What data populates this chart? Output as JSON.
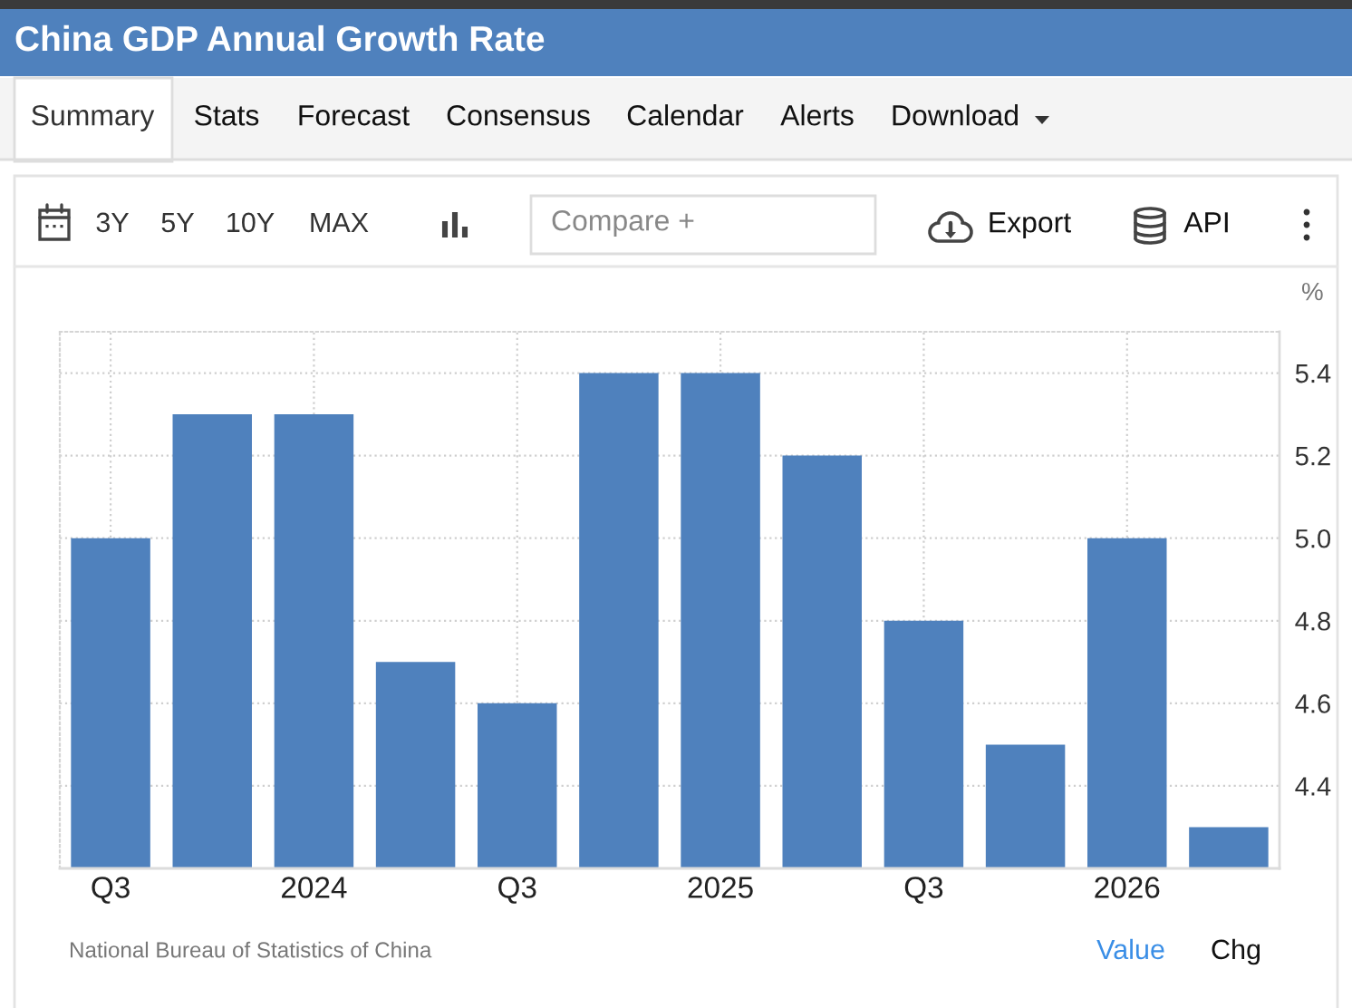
{
  "chart_data": {
    "type": "bar",
    "title": "China GDP Annual Growth Rate",
    "ylabel": "%",
    "categories": [
      "Q3",
      null,
      "2024",
      null,
      "Q3",
      null,
      "2025",
      null,
      "Q3",
      null,
      "2026",
      null
    ],
    "values": [
      5.0,
      5.3,
      5.3,
      4.7,
      4.6,
      5.4,
      5.4,
      5.2,
      4.8,
      4.5,
      5.0,
      4.3
    ],
    "color": "#4f81bd",
    "ylim": [
      4.2,
      5.5
    ],
    "yticks": [
      4.4,
      4.6,
      4.8,
      {
        "value": 5,
        "label": "5.0"
      },
      5.2,
      5.4
    ],
    "grid": true,
    "annotations": [
      "National Bureau of Statistics of China",
      "Summary",
      "Stats",
      "Forecast",
      "Consensus",
      "Calendar",
      "Alerts",
      "Download",
      "3Y",
      "5Y",
      "10Y",
      "MAX",
      "Compare +",
      "Export",
      "API",
      "Value",
      "Chg"
    ]
  }
}
